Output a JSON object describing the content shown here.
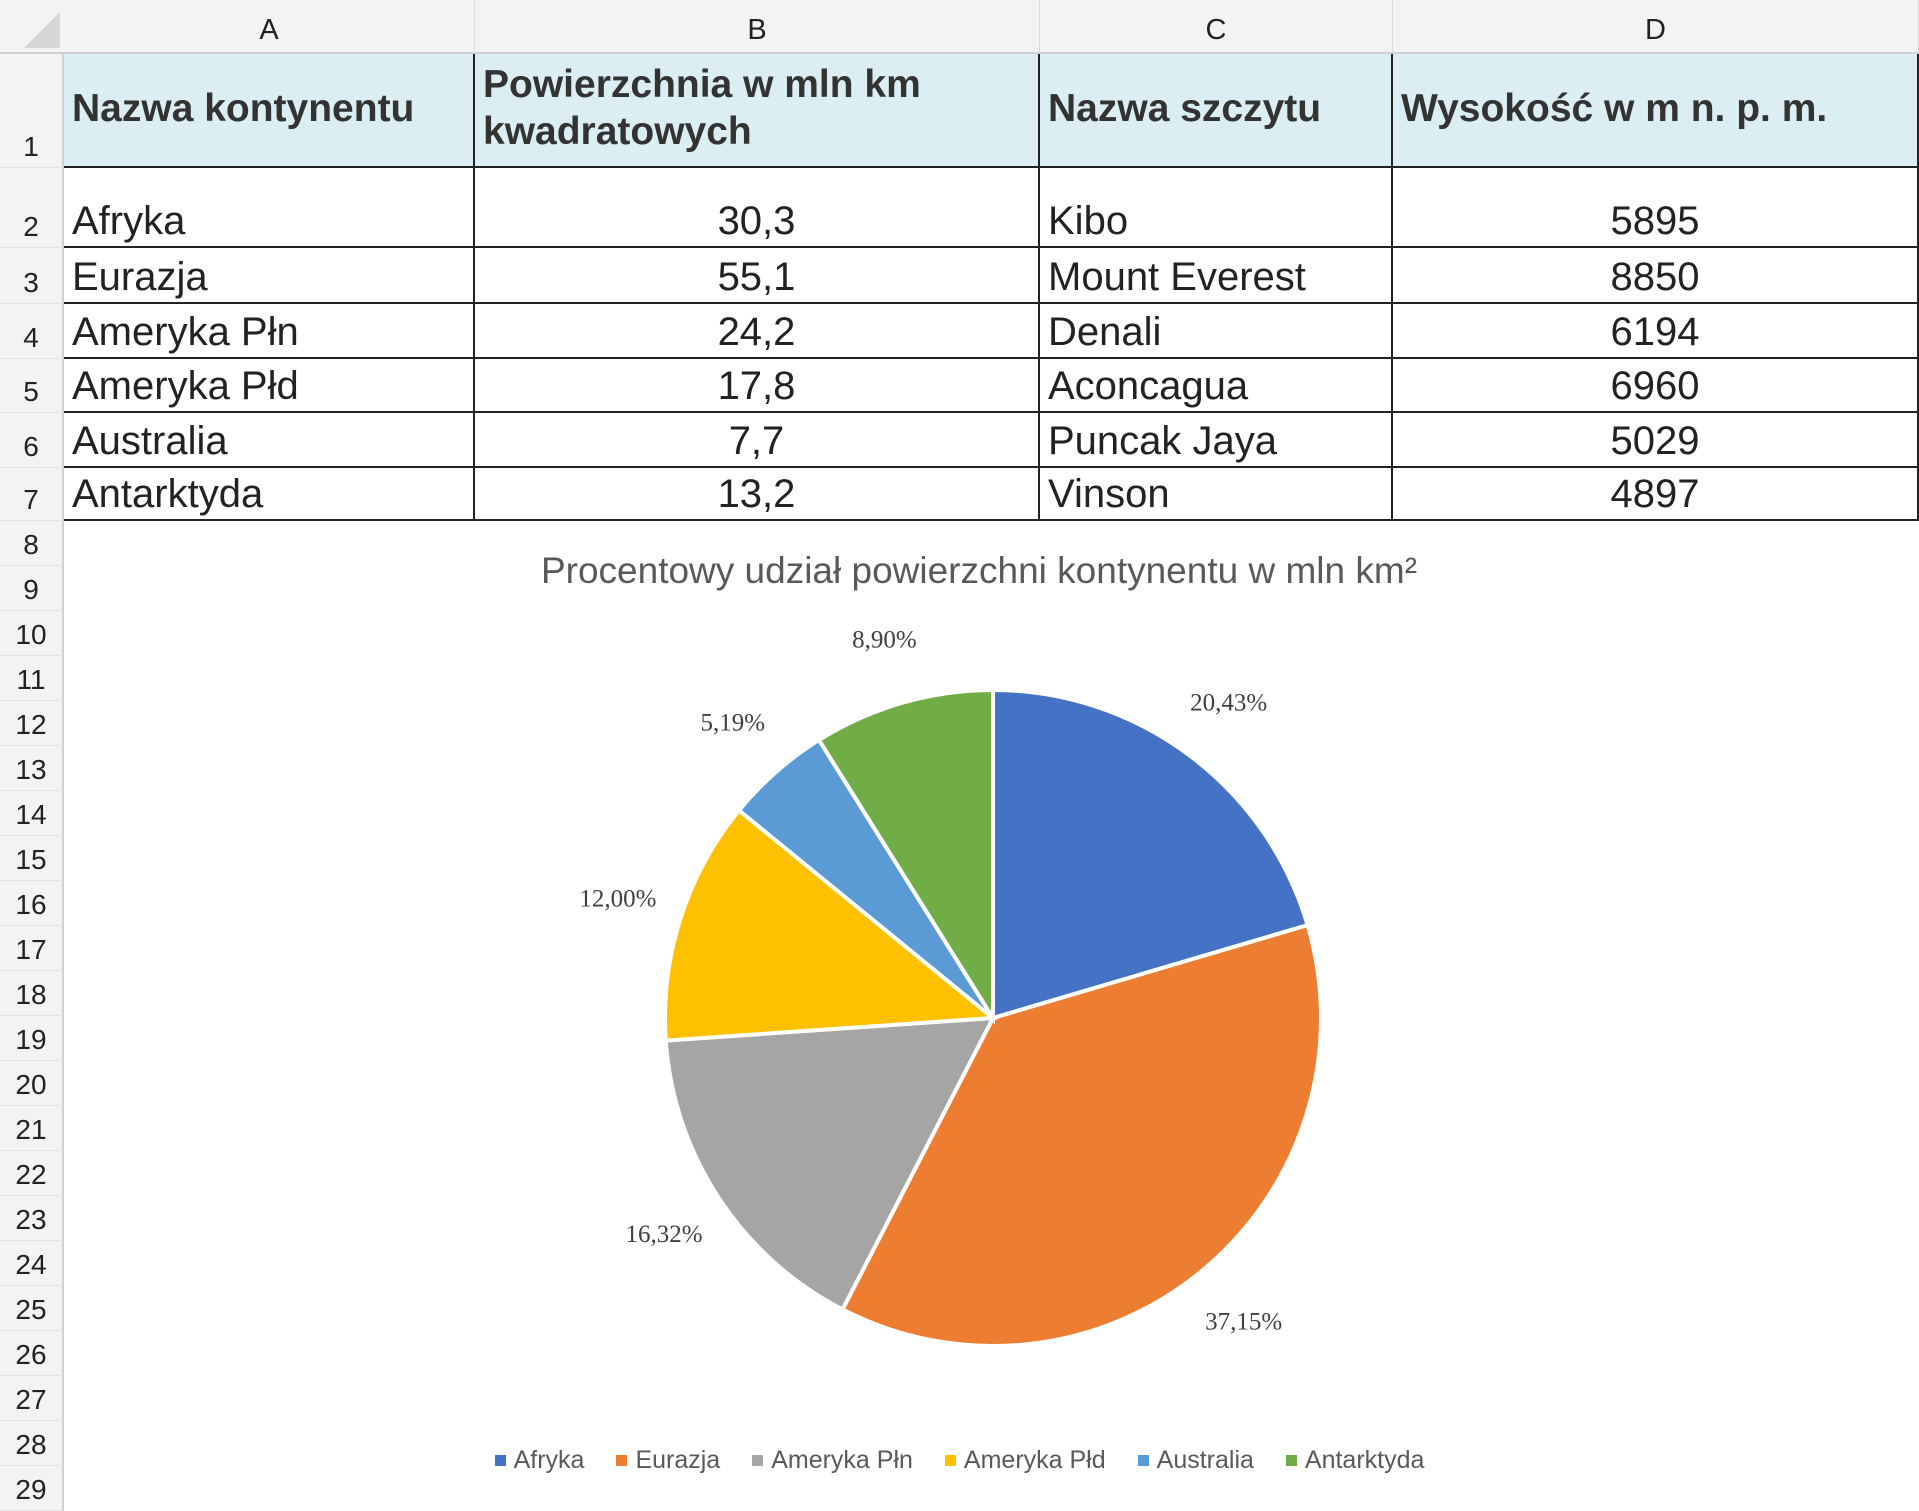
{
  "columns": [
    "A",
    "B",
    "C",
    "D"
  ],
  "rows": [
    "1",
    "2",
    "3",
    "4",
    "5",
    "6",
    "7",
    "8",
    "9",
    "10",
    "11",
    "12",
    "13",
    "14",
    "15",
    "16",
    "17",
    "18",
    "19",
    "20",
    "21",
    "22",
    "23",
    "24",
    "25",
    "26",
    "27",
    "28",
    "29"
  ],
  "table": {
    "headers": [
      "Nazwa kontynentu",
      "Powierzchnia w mln km kwadratowych",
      "Nazwa szczytu",
      "Wysokość w m n. p. m."
    ],
    "data": [
      [
        "Afryka",
        "30,3",
        "Kibo",
        "5895"
      ],
      [
        "Eurazja",
        "55,1",
        "Mount Everest",
        "8850"
      ],
      [
        "Ameryka Płn",
        "24,2",
        "Denali",
        "6194"
      ],
      [
        "Ameryka Płd",
        "17,8",
        "Aconcagua",
        "6960"
      ],
      [
        "Australia",
        "7,7",
        "Puncak Jaya",
        "5029"
      ],
      [
        "Antarktyda",
        "13,2",
        "Vinson",
        "4897"
      ]
    ]
  },
  "chart_data": {
    "type": "pie",
    "title": "Procentowy udział powierzchni kontynentu w mln km²",
    "categories": [
      "Afryka",
      "Eurazja",
      "Ameryka Płn",
      "Ameryka Płd",
      "Australia",
      "Antarktyda"
    ],
    "values": [
      30.3,
      55.1,
      24.2,
      17.8,
      7.7,
      13.2
    ],
    "data_labels": [
      "20,43%",
      "37,15%",
      "16,32%",
      "12,00%",
      "5,19%",
      "8,90%"
    ],
    "colors": [
      "#4472C4",
      "#ED7D31",
      "#A5A5A5",
      "#FFC000",
      "#5B9BD5",
      "#70AD47"
    ],
    "start_angle": "top, clockwise",
    "legend": "bottom"
  }
}
